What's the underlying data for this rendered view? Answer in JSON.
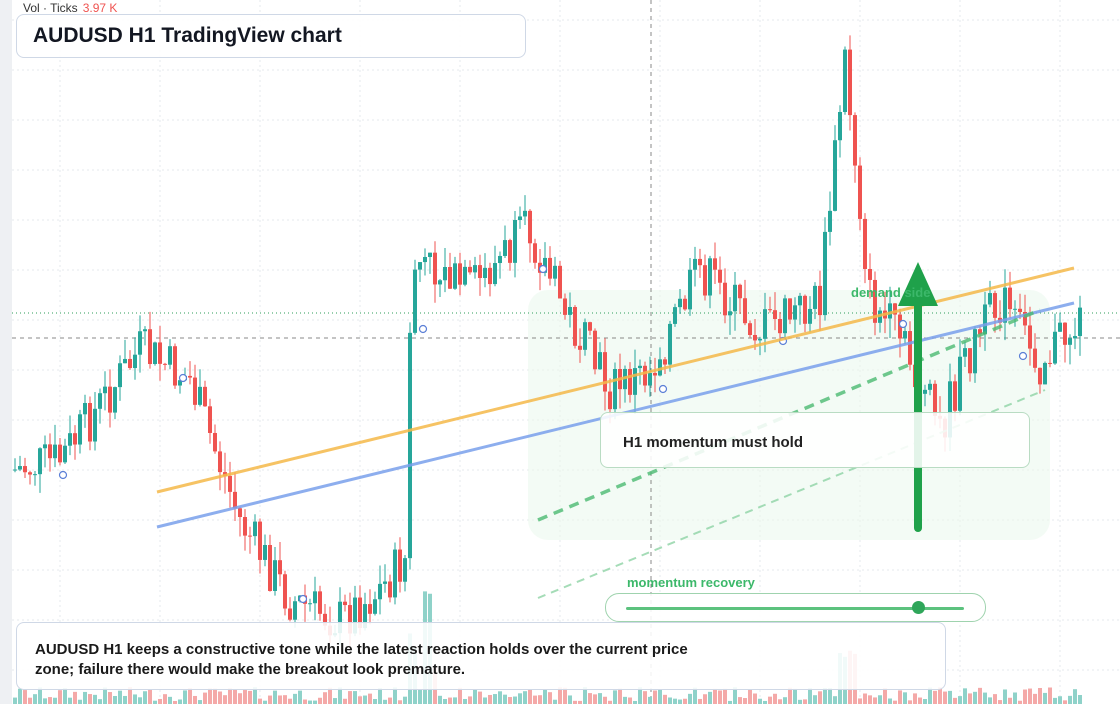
{
  "volume": {
    "label": "Vol · Ticks",
    "value": "3.97 K"
  },
  "header": {
    "title": "AUDUSD H1 TradingView chart"
  },
  "annotations": {
    "zone": "demand side",
    "callout": "H1 momentum must hold",
    "slider": "momentum recovery"
  },
  "caption": "AUDUSD H1 keeps a constructive tone while the latest reaction holds over the current price zone; failure there would make the breakout look premature."
}
